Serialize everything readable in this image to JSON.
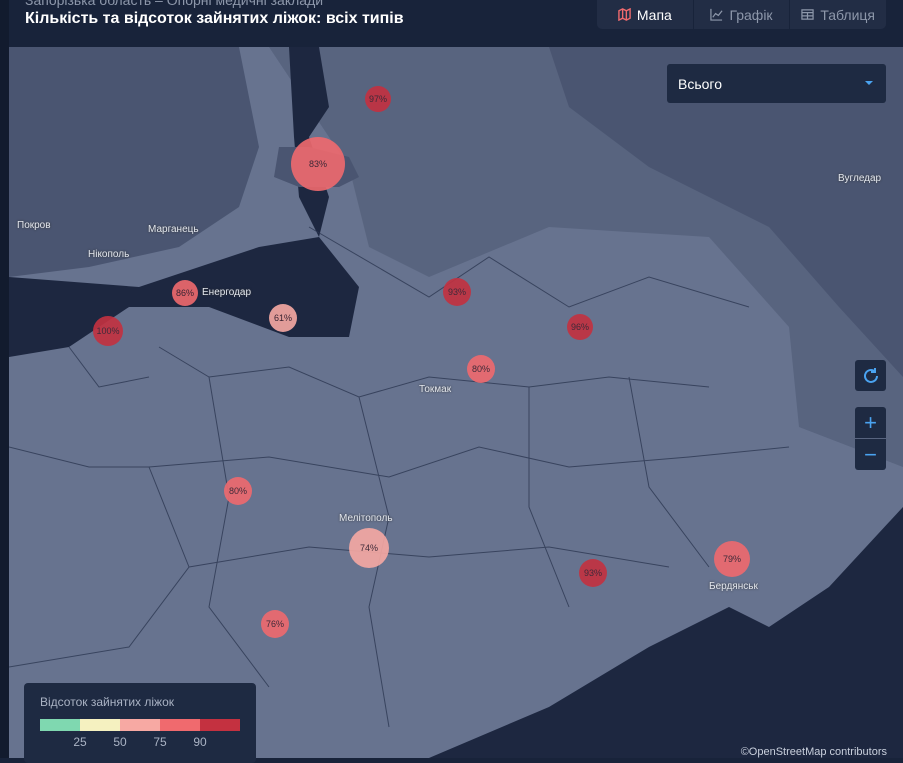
{
  "header": {
    "subtitle": "Запорізька область – Опорні медичні заклади",
    "title": "Кількість та відсоток зайнятих ліжок: всіх типів"
  },
  "tabs": [
    {
      "label": "Мапа",
      "icon": "map-icon",
      "active": true
    },
    {
      "label": "Графік",
      "icon": "line-chart-icon"
    },
    {
      "label": "Таблиця",
      "icon": "table-icon"
    }
  ],
  "filter": {
    "selected": "Всього"
  },
  "controls": {
    "refresh": "refresh-icon",
    "zoom_in": "+",
    "zoom_out": "−"
  },
  "cities": [
    "Покров",
    "Марганець",
    "Нікополь",
    "Енергодар",
    "Токмак",
    "Мелітополь",
    "Бердянськ",
    "Вугледар"
  ],
  "markers": [
    {
      "label": "97%",
      "value": 97
    },
    {
      "label": "83%",
      "value": 83
    },
    {
      "label": "86%",
      "value": 86
    },
    {
      "label": "100%",
      "value": 100
    },
    {
      "label": "61%",
      "value": 61
    },
    {
      "label": "93%",
      "value": 93
    },
    {
      "label": "96%",
      "value": 96
    },
    {
      "label": "80%",
      "value": 80
    },
    {
      "label": "80%",
      "value": 80
    },
    {
      "label": "74%",
      "value": 74
    },
    {
      "label": "93%",
      "value": 93
    },
    {
      "label": "79%",
      "value": 79
    },
    {
      "label": "76%",
      "value": 76
    }
  ],
  "legend": {
    "title": "Відсоток зайнятих ліжок",
    "colors": [
      "#7fd8b0",
      "#f5f1c0",
      "#f7a9a3",
      "#f06a6e",
      "#c43140"
    ],
    "ticks": [
      "25",
      "50",
      "75",
      "90"
    ]
  },
  "attribution": "©OpenStreetMap contributors"
}
